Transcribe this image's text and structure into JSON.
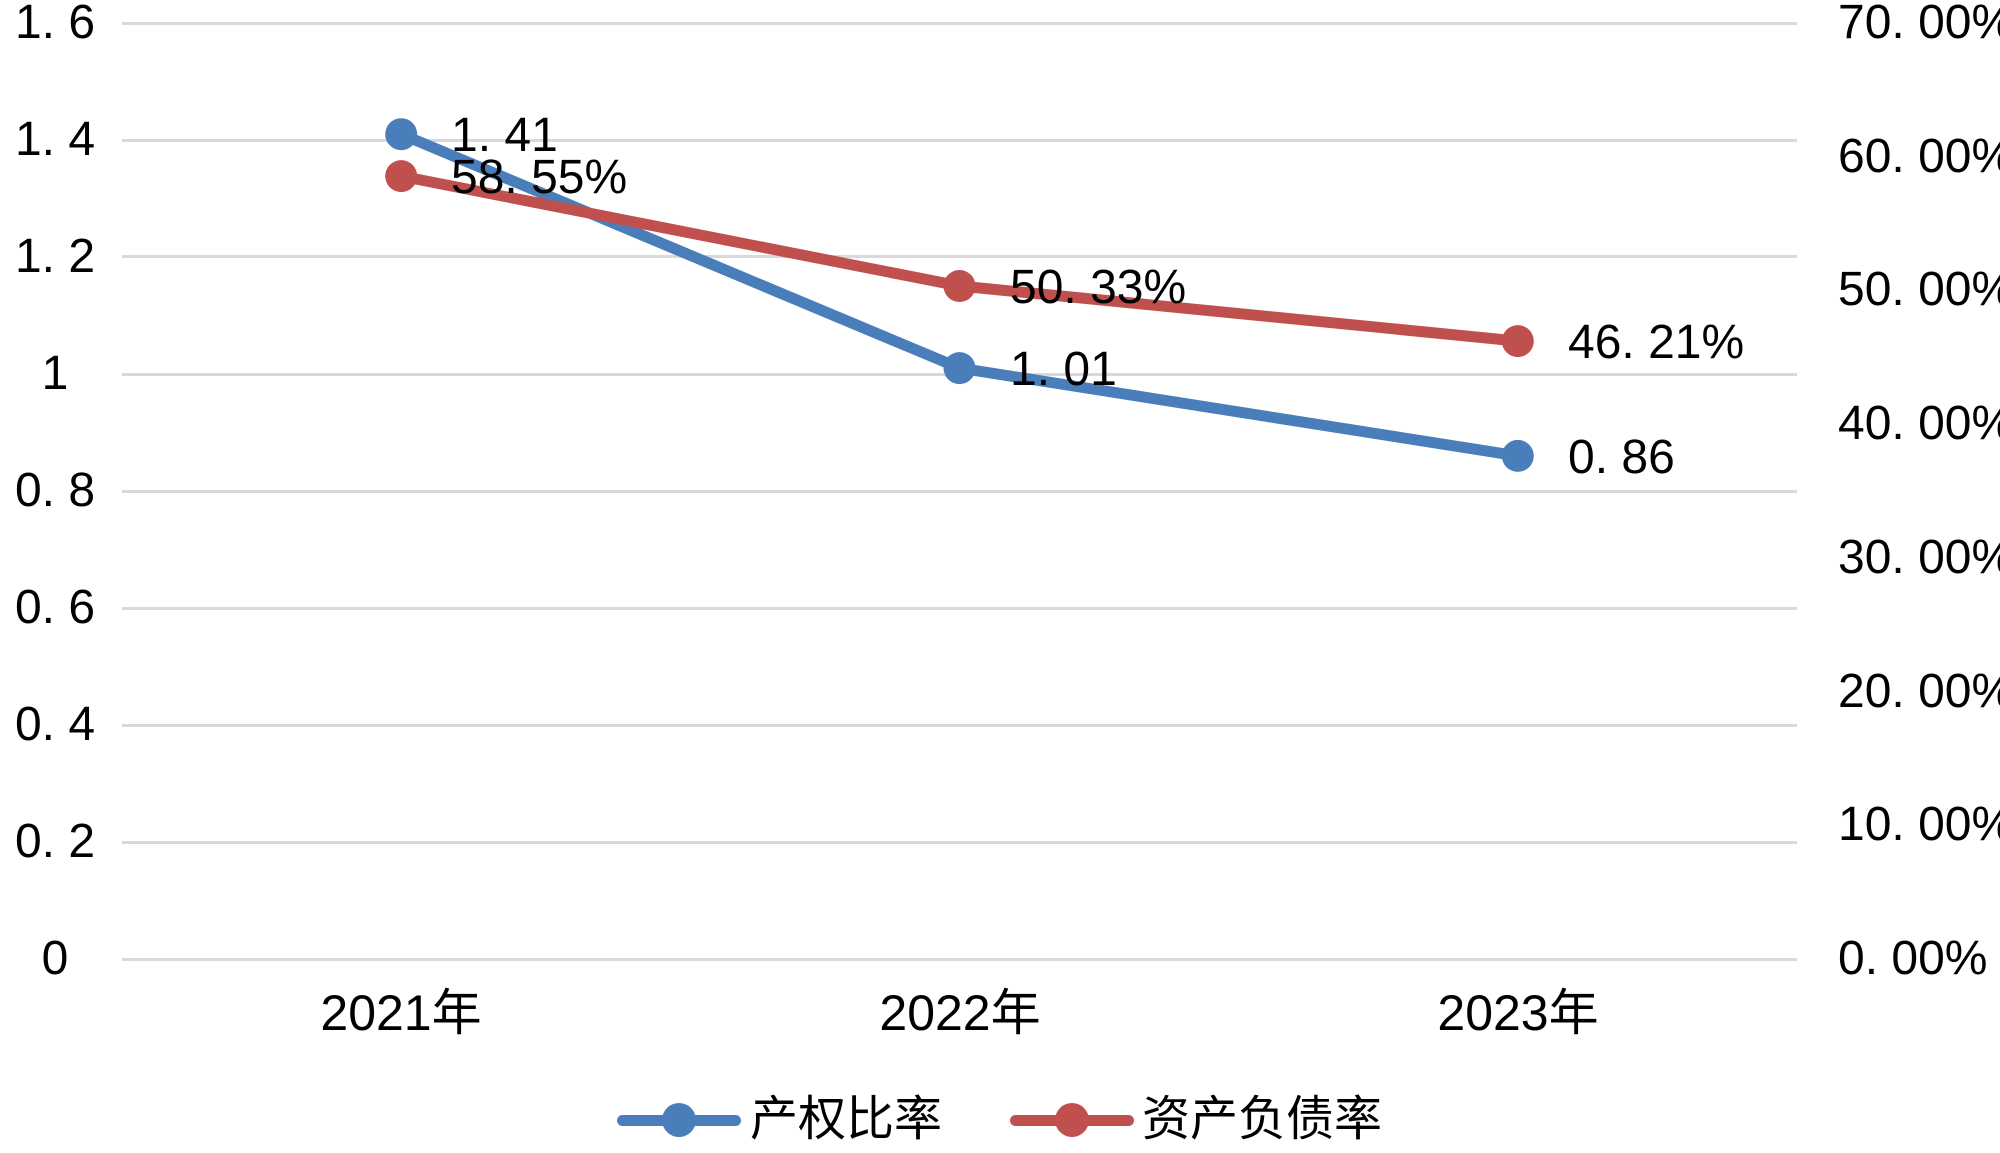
{
  "chart_data": {
    "type": "line",
    "title": "",
    "categories": [
      "2021年",
      "2022年",
      "2023年"
    ],
    "series": [
      {
        "name": "产权比率",
        "axis": "left",
        "color": "#4a7ebb",
        "values": [
          1.41,
          1.01,
          0.86
        ],
        "point_labels": [
          "1. 41",
          "1. 01",
          "0. 86"
        ]
      },
      {
        "name": "资产负债率",
        "axis": "right",
        "color": "#c0504d",
        "values": [
          58.55,
          50.33,
          46.21
        ],
        "point_labels": [
          "58. 55%",
          "50. 33%",
          "46. 21%"
        ]
      }
    ],
    "left_axis": {
      "min": 0,
      "max": 1.6,
      "step": 0.2,
      "tick_labels": [
        "1. 6",
        "1. 4",
        "1. 2",
        "1",
        "0. 8",
        "0. 6",
        "0. 4",
        "0. 2",
        "0"
      ]
    },
    "right_axis": {
      "min": 0,
      "max": 70,
      "step": 10,
      "tick_labels": [
        "70. 00%",
        "60. 00%",
        "50. 00%",
        "40. 00%",
        "30. 00%",
        "20. 00%",
        "10. 00%",
        "0. 00%"
      ]
    },
    "grid": true,
    "gridline_color": "#d9d9d9",
    "legend_position": "bottom"
  },
  "legend": {
    "items": [
      {
        "label": "产权比率",
        "color": "#4a7ebb"
      },
      {
        "label": "资产负债率",
        "color": "#c0504d"
      }
    ]
  }
}
